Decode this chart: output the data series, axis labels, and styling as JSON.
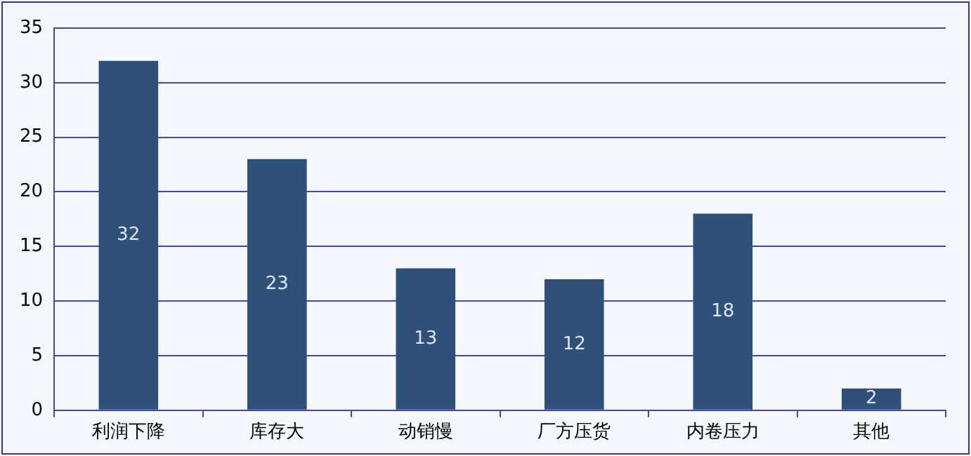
{
  "chart_data": {
    "type": "bar",
    "categories": [
      "利润下降",
      "库存大",
      "动销慢",
      "厂方压货",
      "内卷压力",
      "其他"
    ],
    "values": [
      32,
      23,
      13,
      12,
      18,
      2
    ],
    "color": "#2e5079",
    "ylim": [
      0,
      35
    ],
    "yticks": [
      0,
      5,
      10,
      15,
      20,
      25,
      30,
      35
    ],
    "grid": "y",
    "data_labels": true
  }
}
